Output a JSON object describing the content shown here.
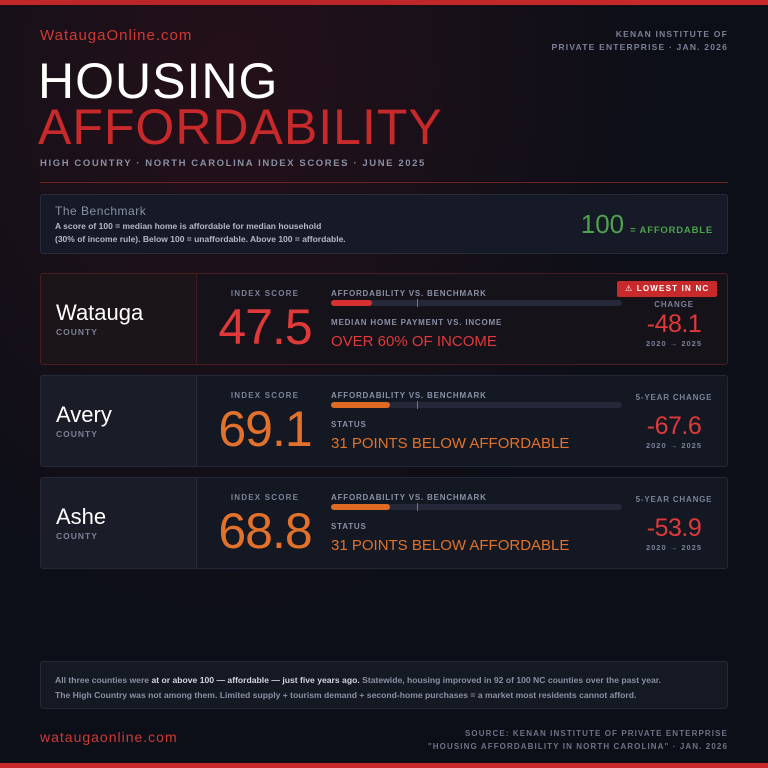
{
  "header": {
    "site": "WataugaOnline.com",
    "source_line1": "KENAN INSTITUTE OF",
    "source_line2": "PRIVATE ENTERPRISE · JAN. 2026",
    "title_line1": "HOUSING",
    "title_line2": "AFFORDABILITY",
    "subtitle": "HIGH COUNTRY · NORTH CAROLINA INDEX SCORES · JUNE 2025"
  },
  "benchmark": {
    "title": "The Benchmark",
    "desc_line1": "A score of 100 = median home is affordable for median household",
    "desc_line2": "(30% of income rule). Below 100 = unaffordable. Above 100 = affordable.",
    "value": "100",
    "value_label": "= AFFORDABLE"
  },
  "counties": [
    {
      "name": "Watauga",
      "county_label": "COUNTY",
      "index_label": "INDEX SCORE",
      "index_value": "47.5",
      "index_numeric": 47.5,
      "affordability_label": "AFFORDABILITY VS. BENCHMARK",
      "status_label": "MEDIAN HOME PAYMENT VS. INCOME",
      "status_text": "OVER 60% OF INCOME",
      "change_label": "CHANGE",
      "change_value": "-48.1",
      "change_years": "2020 → 2025",
      "badge": "⚠ LOWEST IN NC",
      "color": "#e0393a"
    },
    {
      "name": "Avery",
      "county_label": "COUNTY",
      "index_label": "INDEX SCORE",
      "index_value": "69.1",
      "index_numeric": 69.1,
      "affordability_label": "AFFORDABILITY VS. BENCHMARK",
      "status_label": "STATUS",
      "status_text": "31 POINTS BELOW AFFORDABLE",
      "change_label": "5-YEAR CHANGE",
      "change_value": "-67.6",
      "change_years": "2020 → 2025",
      "color": "#e2722b"
    },
    {
      "name": "Ashe",
      "county_label": "COUNTY",
      "index_label": "INDEX SCORE",
      "index_value": "68.8",
      "index_numeric": 68.8,
      "affordability_label": "AFFORDABILITY VS. BENCHMARK",
      "status_label": "STATUS",
      "status_text": "31 POINTS BELOW AFFORDABLE",
      "change_label": "5-YEAR CHANGE",
      "change_value": "-53.9",
      "change_years": "2020 → 2025",
      "color": "#e2722b"
    }
  ],
  "footnote": {
    "part1": "All three counties were ",
    "part2": "at or above 100 — affordable — just five years ago.",
    "part3": " Statewide, housing improved in 92 of 100 NC counties over the past year.",
    "line2": "The High Country was not among them. Limited supply + tourism demand + second-home purchases = a market most residents cannot afford."
  },
  "footer": {
    "site": "wataugaonline.com",
    "source_line1": "SOURCE: KENAN INSTITUTE OF PRIVATE ENTERPRISE",
    "source_line2": "\"HOUSING AFFORDABILITY IN NORTH CAROLINA\" · JAN. 2026"
  },
  "colors": {
    "accent_red": "#c8292a",
    "affordable_green": "#4fa04f",
    "unaffordable_orange": "#e2722b"
  }
}
